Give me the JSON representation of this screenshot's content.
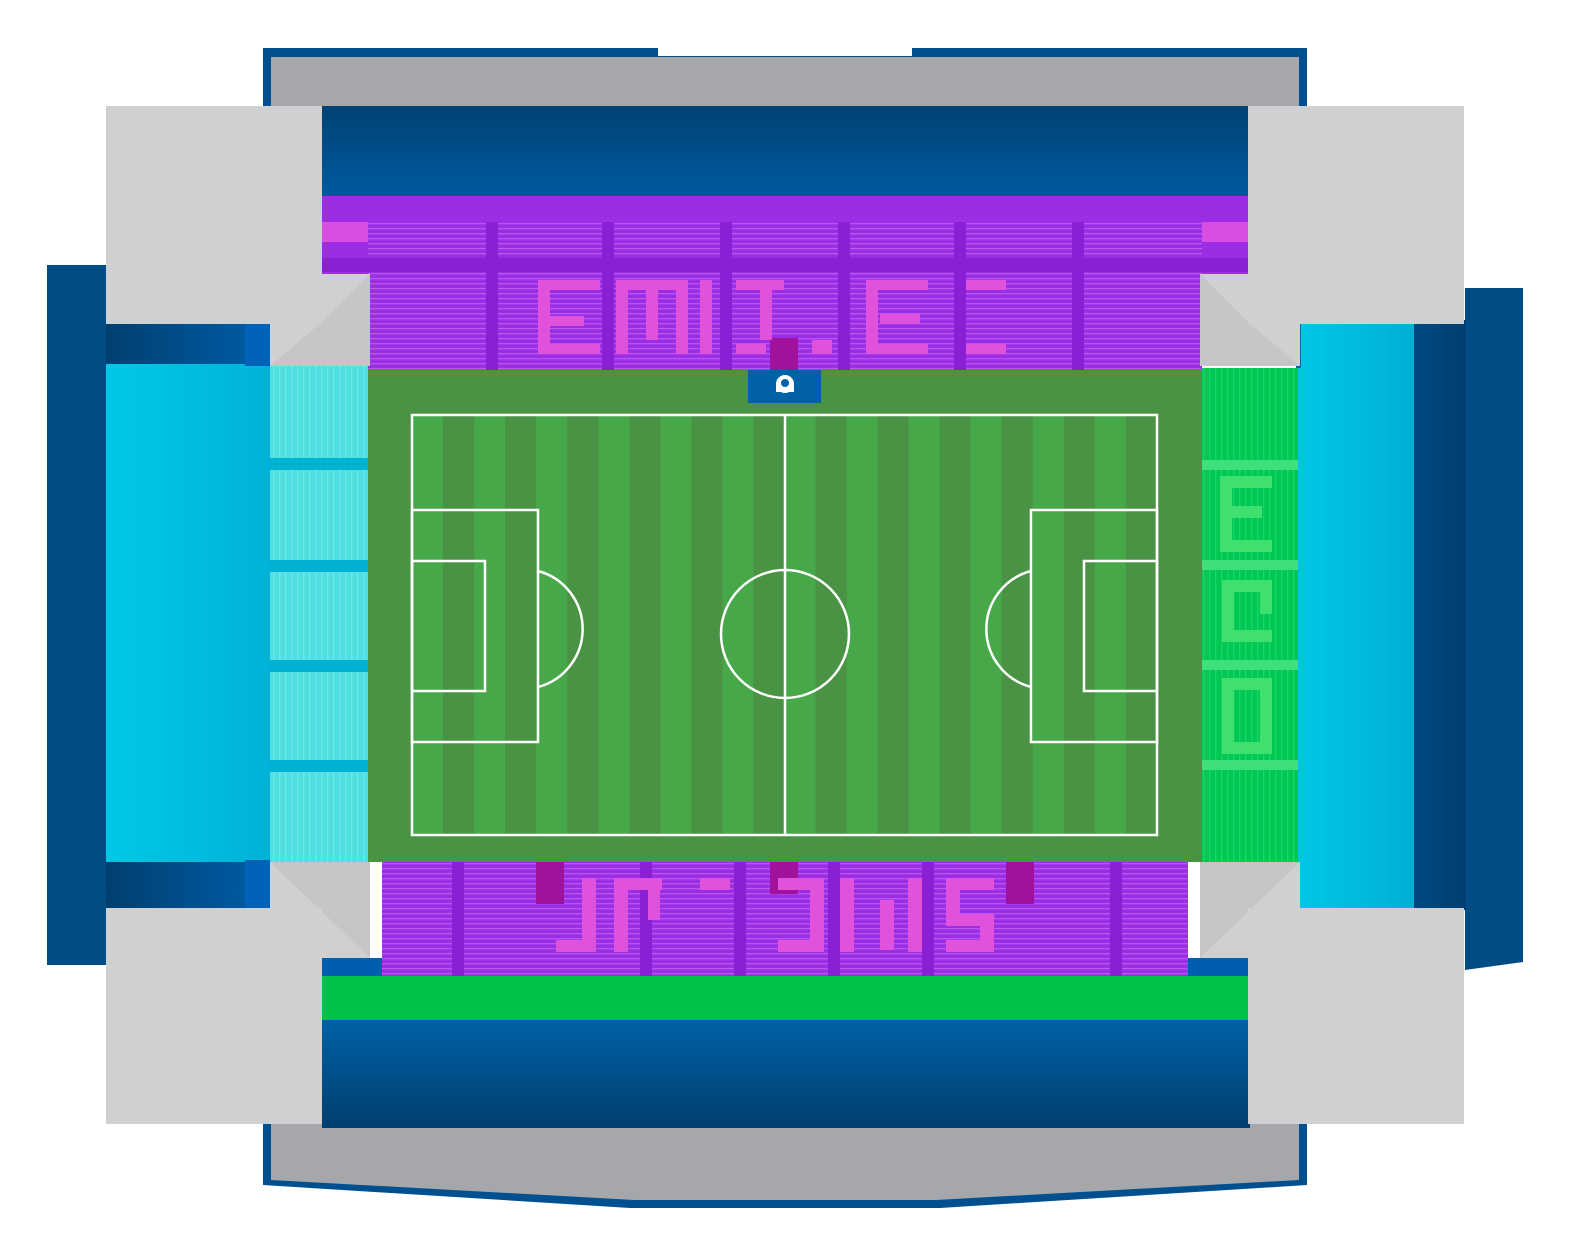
{
  "map": {
    "type": "stadium-seating-map",
    "sections": [
      {
        "id": "north-upper-tier",
        "color": "#0061a6"
      },
      {
        "id": "north-lower-tier",
        "color": "#9b2ee5"
      },
      {
        "id": "south-lower-tier",
        "color": "#9b2ee5"
      },
      {
        "id": "south-upper-tier",
        "color": "#00c149"
      },
      {
        "id": "west-lower-tier",
        "color": "#4fdfe0"
      },
      {
        "id": "west-upper-tier",
        "color": "#00b7da"
      },
      {
        "id": "east-lower-tier",
        "color": "#00c853"
      },
      {
        "id": "east-upper-tier",
        "color": "#00b7da"
      }
    ],
    "pitch": {
      "color_light": "#46a848",
      "color_dark": "#4a9244",
      "line_color": "#ffffff"
    },
    "corners_color": "#cfd0d2",
    "roof_color": "#a5a7aa",
    "outer_color": "#004b82",
    "icons": [
      "club-crest-icon",
      "tunnel-icon"
    ],
    "crest_color": "#0061a6"
  }
}
